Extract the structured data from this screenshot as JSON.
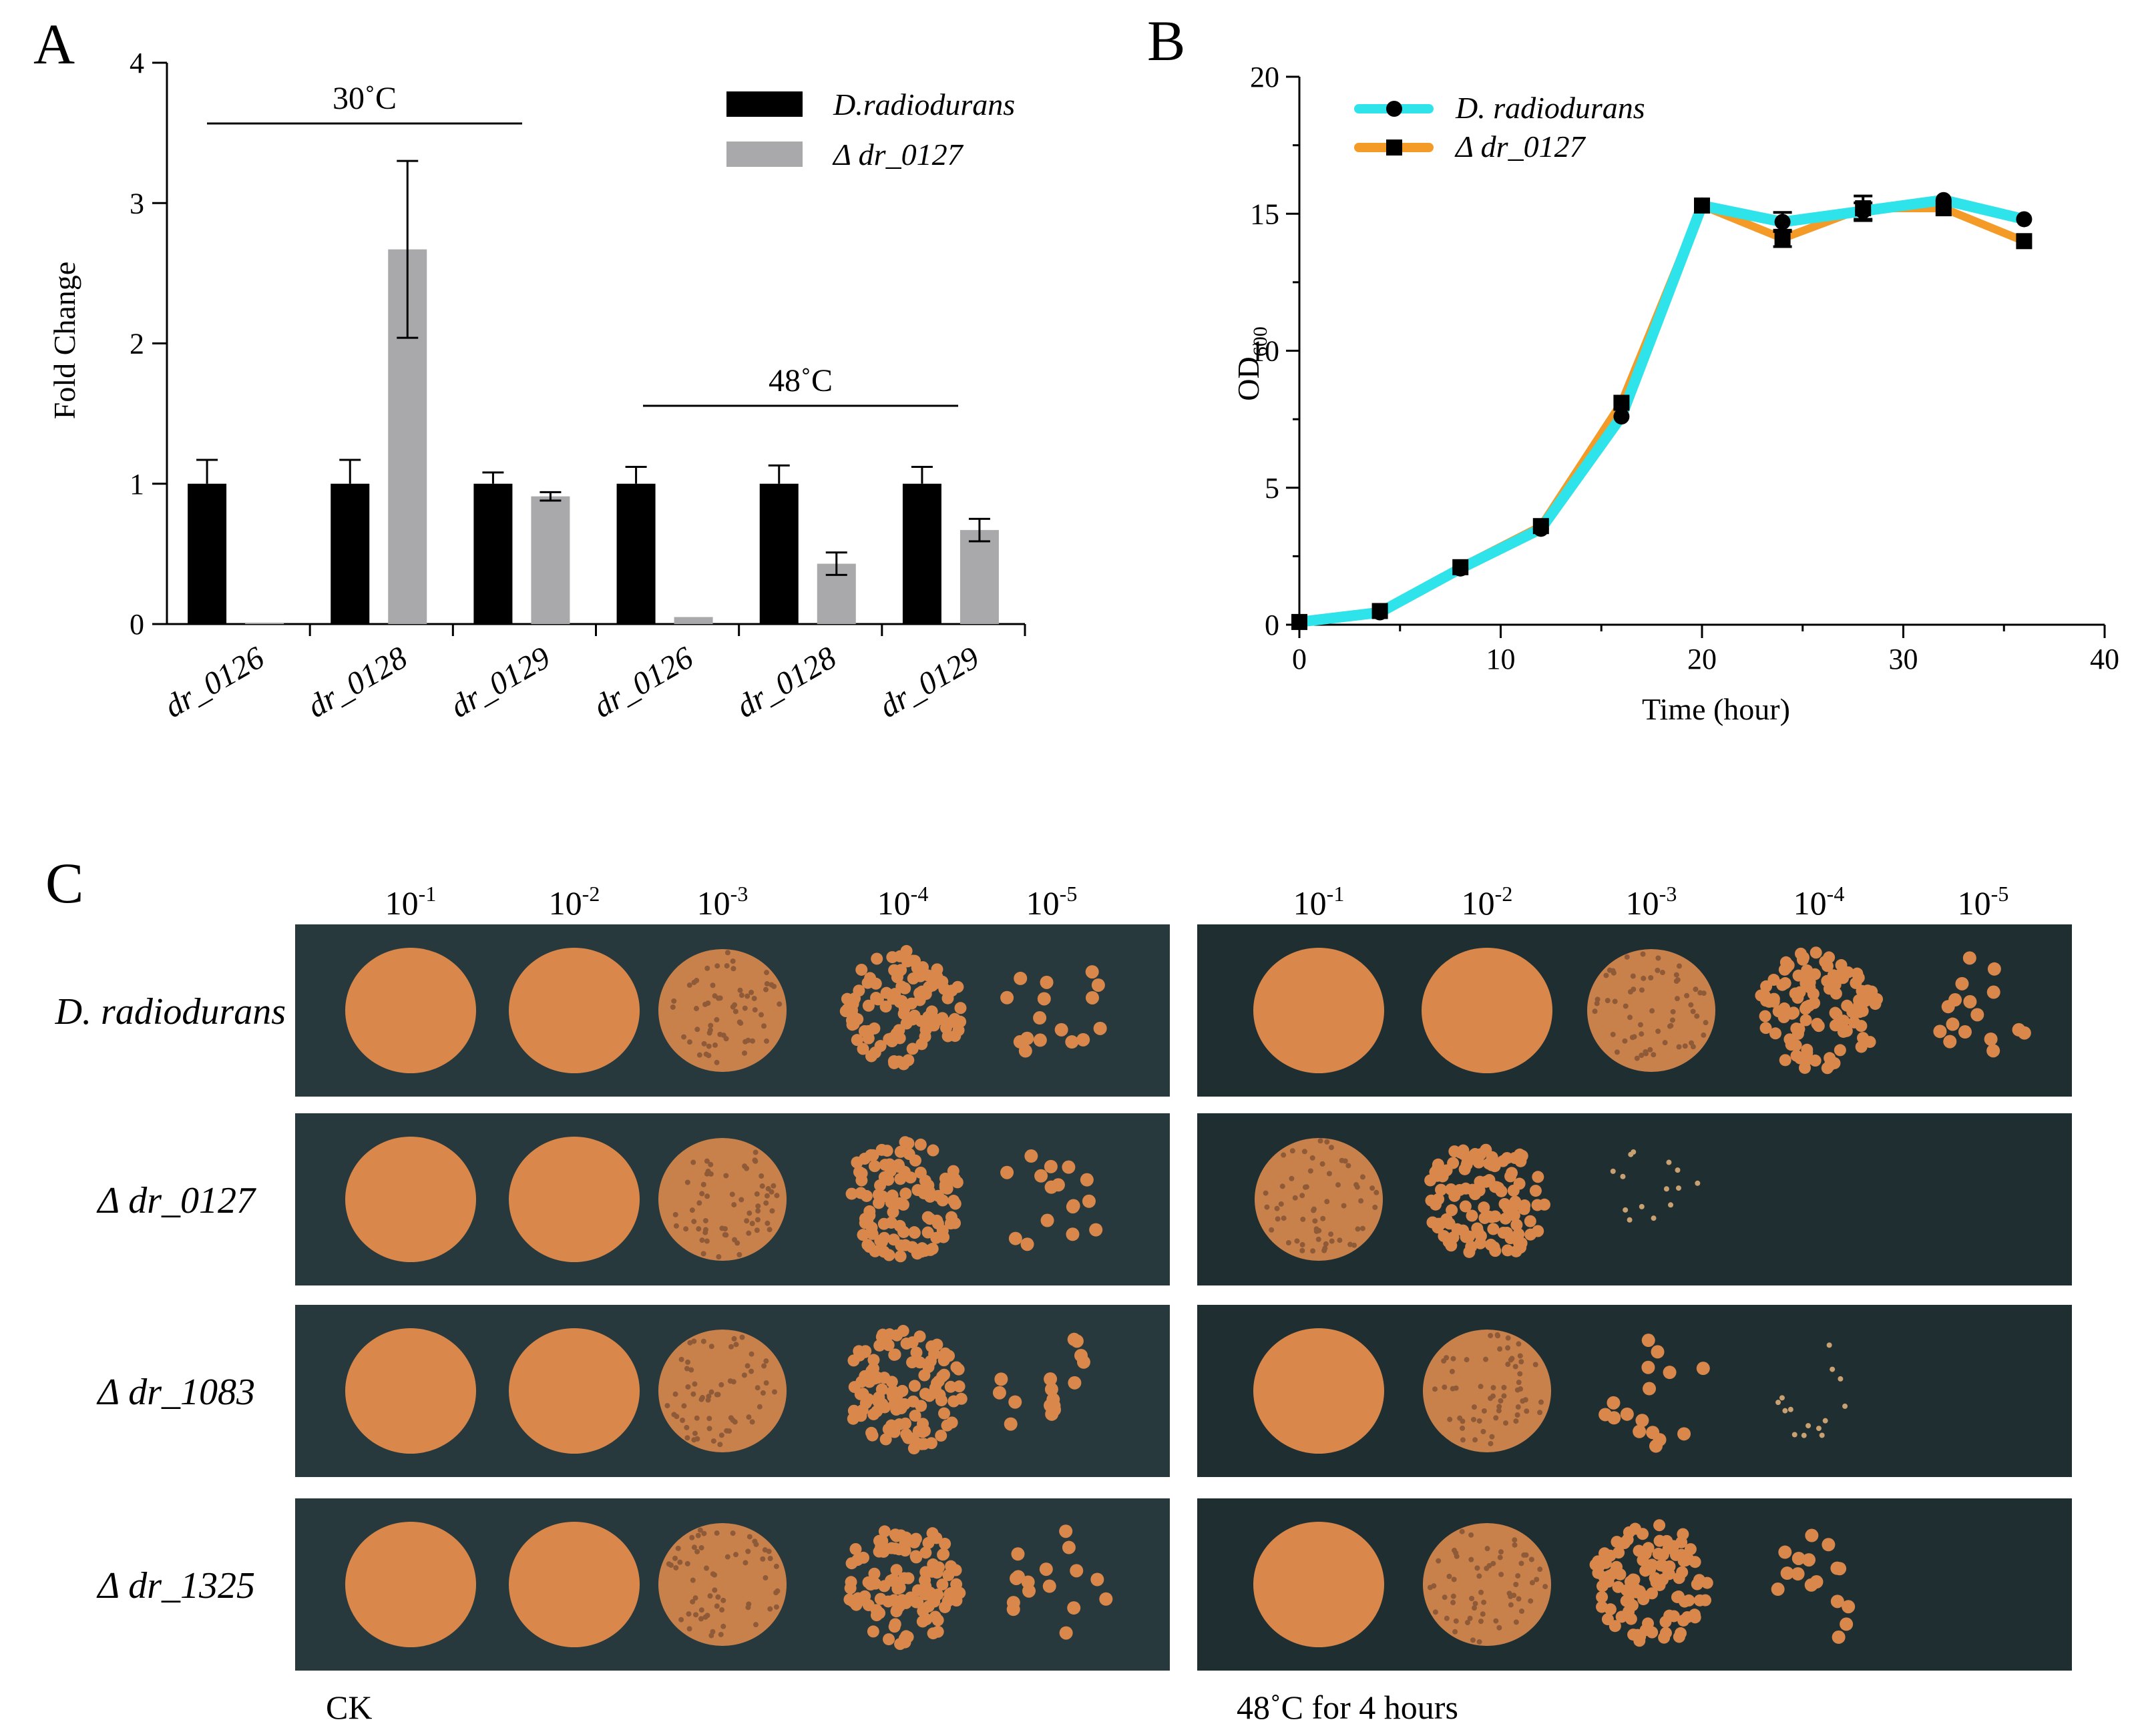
{
  "panel_letters": {
    "a": "A",
    "b": "B",
    "c": "C"
  },
  "colors": {
    "wild_type_bar": "#000000",
    "mutant_bar": "#a9a9ac",
    "wt_line": "#2fe3eb",
    "mutant_line": "#f39a27",
    "plate_background": "#223033",
    "colony": "#d9874a"
  },
  "chart_data": [
    {
      "id": "A",
      "type": "bar",
      "ylabel": "Fold Change",
      "xlabel": "",
      "ylim": [
        0,
        4
      ],
      "yticks": [
        0,
        1,
        2,
        3,
        4
      ],
      "categories": [
        "dr_0126",
        "dr_0128",
        "dr_0129",
        "dr_0126",
        "dr_0128",
        "dr_0129"
      ],
      "series": [
        {
          "name": "D.radiodurans",
          "values": [
            1.0,
            1.0,
            1.0,
            1.0,
            1.0,
            1.0
          ],
          "errors": [
            0.17,
            0.17,
            0.08,
            0.12,
            0.13,
            0.12
          ]
        },
        {
          "name": "Δ dr_0127",
          "values": [
            0.01,
            2.67,
            0.91,
            0.05,
            0.43,
            0.67
          ],
          "errors": [
            0.0,
            0.63,
            0.03,
            0.0,
            0.08,
            0.08
          ]
        }
      ],
      "group_labels": [
        {
          "text": "30˚C",
          "from_category": 0,
          "to_category": 2
        },
        {
          "text": "48˚C",
          "from_category": 3,
          "to_category": 5
        }
      ],
      "legend": {
        "position": "top-right"
      }
    },
    {
      "id": "B",
      "type": "line",
      "xlabel": "Time (hour)",
      "ylabel_main": "OD",
      "ylabel_sub": "600",
      "xlim": [
        0,
        40
      ],
      "ylim": [
        0,
        20
      ],
      "xticks": [
        0,
        10,
        20,
        30,
        40
      ],
      "yticks": [
        0,
        5,
        10,
        15,
        20
      ],
      "x": [
        0,
        4,
        8,
        12,
        16,
        20,
        24,
        28,
        32,
        36
      ],
      "series": [
        {
          "name": "D. radiodurans",
          "marker": "circle",
          "values": [
            0.1,
            0.45,
            2.05,
            3.5,
            7.6,
            15.3,
            14.7,
            15.1,
            15.5,
            14.8
          ],
          "errors": [
            0,
            0,
            0,
            0,
            0,
            0,
            0.35,
            0.3,
            0,
            0
          ]
        },
        {
          "name": "Δ dr_0127",
          "marker": "square",
          "values": [
            0.1,
            0.5,
            2.1,
            3.6,
            8.1,
            15.3,
            14.1,
            15.2,
            15.2,
            14.0
          ],
          "errors": [
            0,
            0,
            0,
            0,
            0,
            0,
            0.3,
            0.45,
            0,
            0
          ]
        }
      ],
      "legend": {
        "position": "top-left"
      }
    }
  ],
  "panel_c": {
    "dilution_base": "10",
    "dilution_exponents": [
      "-1",
      "-2",
      "-3",
      "-4",
      "-5"
    ],
    "strains": [
      "D. radiodurans",
      "Δ dr_0127",
      "Δ dr_1083",
      "Δ dr_1325"
    ],
    "conditions": [
      "CK",
      "48˚C for 4 hours"
    ],
    "growth_levels": {
      "description_scale": "5=confluent spot, 4=dense colonies, 3=many colonies, 2=scattered colonies, 1=few tiny colonies, 0=none",
      "CK": [
        [
          5,
          5,
          4,
          3,
          2
        ],
        [
          5,
          5,
          4,
          3,
          2
        ],
        [
          5,
          5,
          4,
          3,
          2
        ],
        [
          5,
          5,
          4,
          3,
          2
        ]
      ],
      "heat": [
        [
          5,
          5,
          4,
          3,
          2
        ],
        [
          4,
          3,
          1,
          0,
          0
        ],
        [
          5,
          4,
          2,
          1,
          0
        ],
        [
          5,
          4,
          3,
          2,
          0
        ]
      ]
    }
  }
}
